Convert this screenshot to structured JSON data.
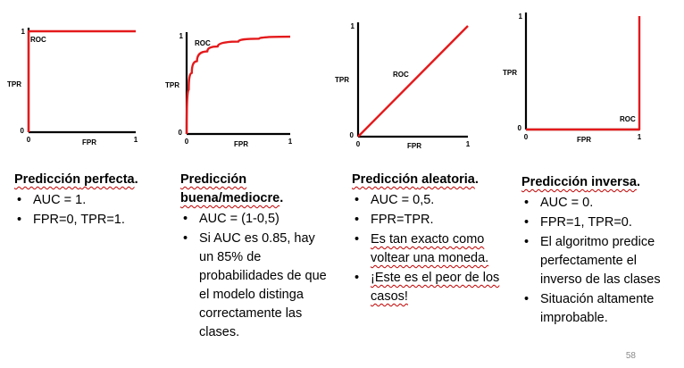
{
  "charts": [
    {
      "chart_data": {
        "type": "line",
        "x": [
          0,
          0,
          1
        ],
        "y": [
          0,
          1,
          1
        ],
        "series": [
          {
            "name": "ROC",
            "x": [
              0,
              0,
              1
            ],
            "y": [
              0,
              1,
              1
            ]
          }
        ],
        "xlabel": "FPR",
        "ylabel": "TPR",
        "xlim": [
          0,
          1
        ],
        "ylim": [
          0,
          1
        ],
        "x_ticks": [
          "0",
          "1"
        ],
        "y_ticks": [
          "0",
          "1"
        ],
        "line_color": "#e41a1c",
        "grid": false,
        "legend": "none"
      }
    },
    {
      "chart_data": {
        "type": "line",
        "series": [
          {
            "name": "ROC",
            "x": [
              0,
              0.02,
              0.05,
              0.1,
              0.2,
              0.3,
              0.5,
              0.7,
              1
            ],
            "y": [
              0,
              0.45,
              0.62,
              0.74,
              0.84,
              0.89,
              0.94,
              0.97,
              0.99
            ]
          }
        ],
        "xlabel": "FPR",
        "ylabel": "TPR",
        "xlim": [
          0,
          1
        ],
        "ylim": [
          0,
          1
        ],
        "x_ticks": [
          "0",
          "1"
        ],
        "y_ticks": [
          "0",
          "1"
        ],
        "line_color": "#e41a1c",
        "grid": false,
        "legend": "none"
      }
    },
    {
      "chart_data": {
        "type": "line",
        "series": [
          {
            "name": "ROC",
            "x": [
              0,
              1
            ],
            "y": [
              0,
              1
            ]
          }
        ],
        "xlabel": "FPR",
        "ylabel": "TPR",
        "xlim": [
          0,
          1
        ],
        "ylim": [
          0,
          1
        ],
        "x_ticks": [
          "0",
          "1"
        ],
        "y_ticks": [
          "0",
          "1"
        ],
        "line_color": "#e41a1c",
        "grid": false,
        "legend": "none"
      }
    },
    {
      "chart_data": {
        "type": "line",
        "series": [
          {
            "name": "ROC",
            "x": [
              0,
              1,
              1
            ],
            "y": [
              0,
              0,
              1
            ]
          }
        ],
        "xlabel": "FPR",
        "ylabel": "TPR",
        "xlim": [
          0,
          1
        ],
        "ylim": [
          0,
          1
        ],
        "x_ticks": [
          "0",
          "1"
        ],
        "y_ticks": [
          "0",
          "1"
        ],
        "line_color": "#e41a1c",
        "grid": false,
        "legend": "none"
      }
    }
  ],
  "columns": [
    {
      "title_part1": "Predicción",
      "title_part2": " perfecta",
      "title_end": ".",
      "bullets": [
        {
          "text": "AUC = 1."
        },
        {
          "text": "FPR=0, TPR=1."
        }
      ]
    },
    {
      "title_part1": "Predicción",
      "title_part2": "buena/mediocre",
      "title_end": ".",
      "bullets": [
        {
          "text": "AUC = (1-0,5)"
        },
        {
          "text": "Si AUC es 0.85, hay un 85% de probabilidades de que el modelo distinga correctamente las clases."
        }
      ]
    },
    {
      "title_part1": "Predicción",
      "title_part2": " aleatoria",
      "title_end": ".",
      "bullets": [
        {
          "text": "AUC = 0,5."
        },
        {
          "text": "FPR=TPR."
        },
        {
          "text": "Es tan exacto como voltear una moneda."
        },
        {
          "text": "¡Este es el peor de los casos!"
        }
      ]
    },
    {
      "title_part1": "Predicción",
      "title_part2": " inversa",
      "title_end": ".",
      "bullets": [
        {
          "text": "AUC = 0."
        },
        {
          "text": "FPR=1, TPR=0."
        },
        {
          "text": " El algoritmo predice perfectamente el inverso de las clases"
        },
        {
          "text": "Situación altamente improbable."
        }
      ]
    }
  ],
  "bullet_char": "•",
  "page_number": "58"
}
